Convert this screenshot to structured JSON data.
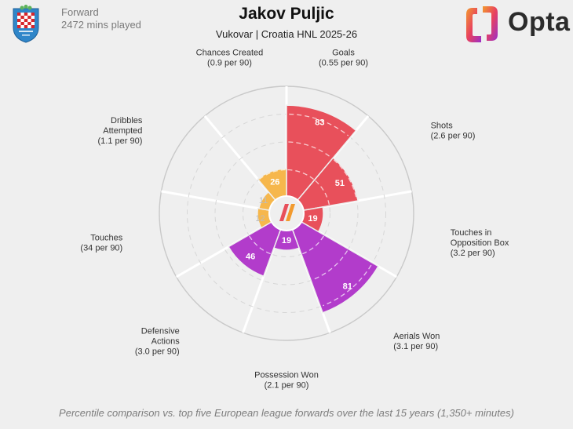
{
  "header": {
    "player_name": "Jakov Puljic",
    "subtitle": "Vukovar | Croatia HNL 2025-26",
    "position": "Forward",
    "minutes_played": "2472 mins played"
  },
  "branding": {
    "provider": "Opta"
  },
  "footnote": "Percentile comparison vs. top five European league forwards over the last 15 years (1,350+ minutes)",
  "colors": {
    "background": "#efefef",
    "attacking": "#e8505b",
    "possession": "#f6b74c",
    "defending": "#b23ccb",
    "neutral_value": "#bdbdbd",
    "grid": "#ffffff"
  },
  "chart_data": {
    "type": "radial-bar",
    "rmax": 100,
    "rings": [
      25,
      50,
      75,
      100
    ],
    "metrics": [
      {
        "label": [
          "Goals",
          "(0.55 per 90)"
        ],
        "value": 83,
        "group": "attacking"
      },
      {
        "label": [
          "Shots",
          "(2.6 per 90)"
        ],
        "value": 51,
        "group": "attacking"
      },
      {
        "label": [
          "Touches in",
          "Opposition Box",
          "(3.2 per 90)"
        ],
        "value": 19,
        "group": "attacking"
      },
      {
        "label": [
          "Aerials Won",
          "(3.1 per 90)"
        ],
        "value": 81,
        "group": "defending"
      },
      {
        "label": [
          "Possession Won",
          "(2.1 per 90)"
        ],
        "value": 19,
        "group": "defending"
      },
      {
        "label": [
          "Defensive",
          "Actions",
          "(3.0 per 90)"
        ],
        "value": 46,
        "group": "defending"
      },
      {
        "label": [
          "Touches",
          "(34 per 90)"
        ],
        "value": 12,
        "group": "possession"
      },
      {
        "label": [
          "Dribbles",
          "Attempted",
          "(1.1 per 90)"
        ],
        "value": 11,
        "group": "possession"
      },
      {
        "label": [
          "Chances Created",
          "(0.9 per 90)"
        ],
        "value": 26,
        "group": "possession"
      }
    ]
  }
}
